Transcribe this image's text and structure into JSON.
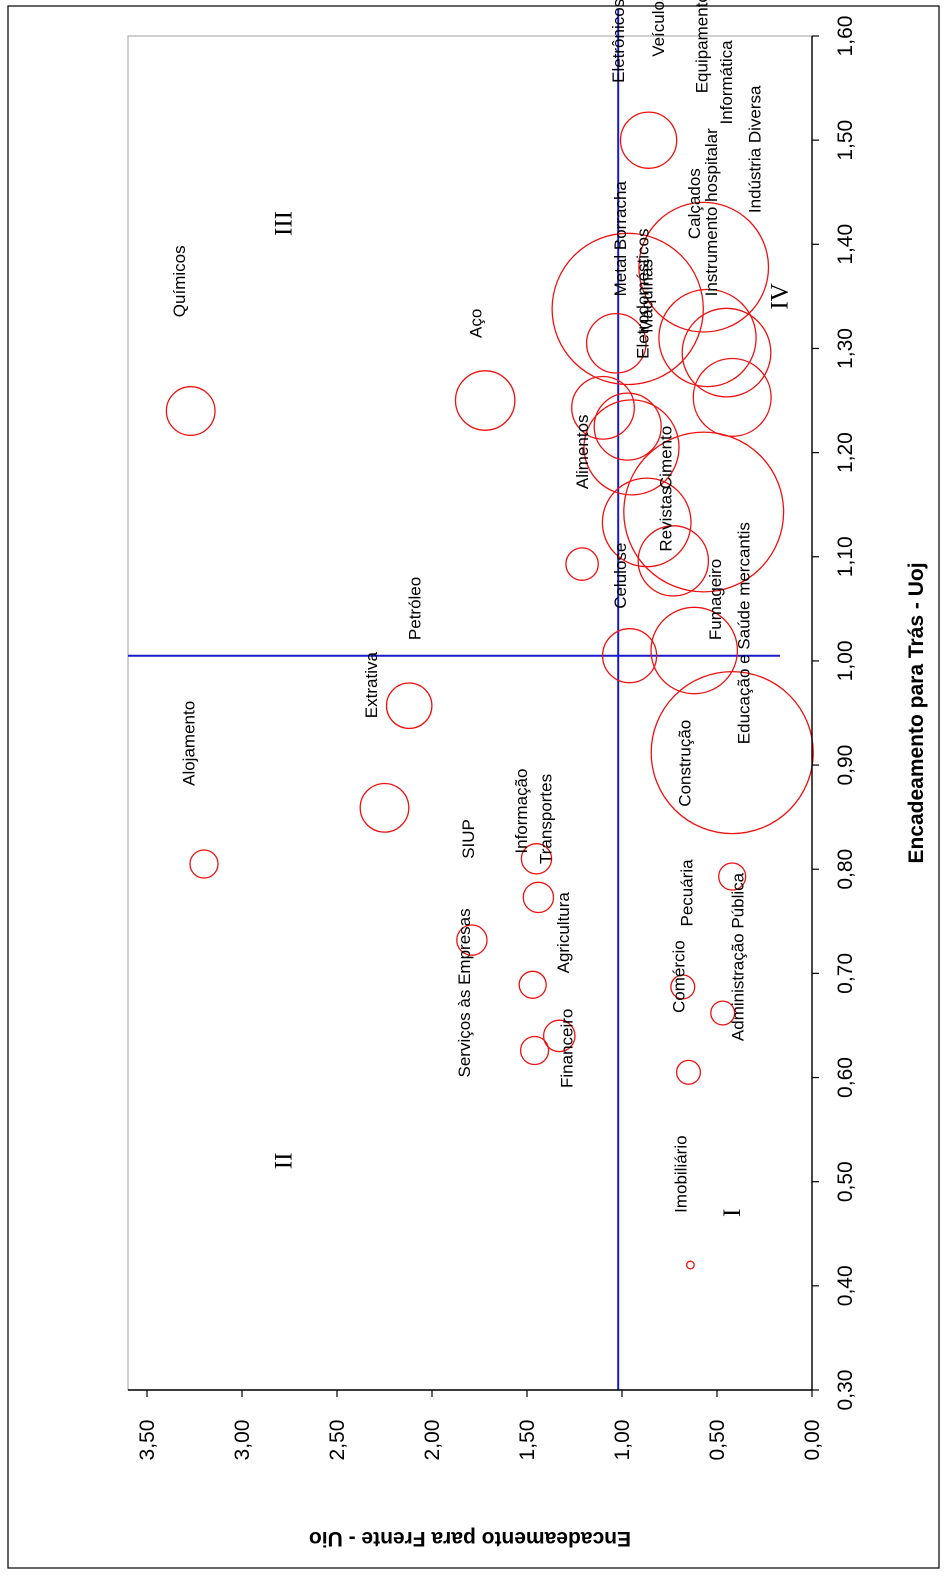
{
  "chart_data": {
    "type": "scatter",
    "variant": "bubble",
    "rotated": "90deg clockwise (x axis along the right side, y axis along the bottom)",
    "title": "",
    "xlabel": "Encadeamento para Trás - Uoj",
    "ylabel": "Encadeamento para Frente - Uio",
    "xlim": [
      0.3,
      1.6
    ],
    "ylim": [
      0.0,
      3.6
    ],
    "x_ticks": [
      "0,30",
      "0,40",
      "0,50",
      "0,60",
      "0,70",
      "0,80",
      "0,90",
      "1,00",
      "1,10",
      "1,20",
      "1,30",
      "1,40",
      "1,50",
      "1,60"
    ],
    "y_ticks": [
      "0,00",
      "0,50",
      "1,00",
      "1,50",
      "2,00",
      "2,50",
      "3,00",
      "3,50"
    ],
    "grid": false,
    "reference_lines": {
      "x": 1.005,
      "y": 1.02
    },
    "colors": {
      "bubbles": "#ee1111",
      "reference_lines": "#1a1acc",
      "frame": "#b0b0b0",
      "text": "#000000"
    },
    "quadrant_labels": [
      {
        "label": "I",
        "x": 0.47,
        "y": 0.38
      },
      {
        "label": "II",
        "x": 0.52,
        "y": 2.74
      },
      {
        "label": "III",
        "x": 1.42,
        "y": 2.74
      },
      {
        "label": "IV",
        "x": 1.35,
        "y": 0.13
      }
    ],
    "points": [
      {
        "name": "Imobiliário",
        "x": 0.42,
        "y": 0.64,
        "r": 0.07
      },
      {
        "name": "Financeiro",
        "x": 0.626,
        "y": 1.46,
        "r": 0.26
      },
      {
        "name": "Serviços às Empresas",
        "x": 0.732,
        "y": 1.79,
        "r": 0.28
      },
      {
        "name": "Agricultura",
        "x": 0.64,
        "y": 1.33,
        "r": 0.29
      },
      {
        "name": "Comércio",
        "x": 0.605,
        "y": 0.65,
        "r": 0.22
      },
      {
        "name": "Administração Pública",
        "x": 0.662,
        "y": 0.47,
        "r": 0.22
      },
      {
        "name": "Pecuária",
        "x": 0.687,
        "y": 0.68,
        "r": 0.22
      },
      {
        "name": "SIUP",
        "x": 0.689,
        "y": 1.47,
        "r": 0.25
      },
      {
        "name": "Informação",
        "x": 0.773,
        "y": 1.44,
        "r": 0.28
      },
      {
        "name": "Transportes",
        "x": 0.81,
        "y": 1.45,
        "r": 0.28
      },
      {
        "name": "Alojamento",
        "x": 0.805,
        "y": 3.2,
        "r": 0.26
      },
      {
        "name": "Extrativa",
        "x": 0.859,
        "y": 2.25,
        "r": 0.45
      },
      {
        "name": "Petróleo",
        "x": 0.957,
        "y": 2.12,
        "r": 0.42
      },
      {
        "name": "Construção",
        "x": 0.793,
        "y": 0.42,
        "r": 0.25
      },
      {
        "name": "Educação e Saúde mercantis",
        "x": 0.912,
        "y": 0.42,
        "r": 1.5
      },
      {
        "name": "Fumageiro",
        "x": 1.01,
        "y": 0.62,
        "r": 0.8
      },
      {
        "name": "Celulose",
        "x": 1.005,
        "y": 0.96,
        "r": 0.5
      },
      {
        "name": "Revistas",
        "x": 1.096,
        "y": 0.73,
        "r": 0.65
      },
      {
        "name": "Alimentos",
        "x": 1.093,
        "y": 1.21,
        "r": 0.3
      },
      {
        "name": "Cimento",
        "x": 1.133,
        "y": 0.87,
        "r": 0.82
      },
      {
        "name": "Eletrodomésticos",
        "x": 1.143,
        "y": 0.57,
        "r": 1.48
      },
      {
        "name": "Máquinas",
        "x": 1.225,
        "y": 0.97,
        "r": 0.62
      },
      {
        "name": "Metal Borracha",
        "x": 1.205,
        "y": 0.95,
        "r": 0.88
      },
      {
        "name": "Aço",
        "x": 1.25,
        "y": 1.72,
        "r": 0.55
      },
      {
        "name": "Químicos",
        "x": 1.24,
        "y": 3.27,
        "r": 0.45
      },
      {
        "name": "Metal Borracha",
        "x": 1.243,
        "y": 1.1,
        "r": 0.58
      },
      {
        "name": "Instrumento hospitalar",
        "x": 1.253,
        "y": 0.42,
        "r": 0.72
      },
      {
        "name": "Indústria Diversa",
        "x": 1.296,
        "y": 0.45,
        "r": 0.82
      },
      {
        "name": "Calçados",
        "x": 1.31,
        "y": 0.55,
        "r": 0.9
      },
      {
        "name": "Eletrônicos",
        "x": 1.338,
        "y": 0.97,
        "r": 1.4
      },
      {
        "name": "Metal Borracha",
        "x": 1.305,
        "y": 1.03,
        "r": 0.55
      },
      {
        "name": "Equipamento de Transporte",
        "x": 1.378,
        "y": 0.57,
        "r": 1.2
      },
      {
        "name": "Veículos",
        "x": 1.5,
        "y": 0.86,
        "r": 0.52
      }
    ],
    "labels": [
      {
        "text": "Imobiliário",
        "x": 0.47,
        "y": 0.66
      },
      {
        "text": "Financeiro",
        "x": 0.59,
        "y": 1.26
      },
      {
        "text": "Serviços às Empresas",
        "x": 0.6,
        "y": 1.8
      },
      {
        "text": "Agricultura",
        "x": 0.7,
        "y": 1.28
      },
      {
        "text": "Comércio",
        "x": 0.662,
        "y": 0.67
      },
      {
        "text": "Administração Pública",
        "x": 0.635,
        "y": 0.36
      },
      {
        "text": "Pecuária",
        "x": 0.745,
        "y": 0.63
      },
      {
        "text": "SIUP",
        "x": 0.81,
        "y": 1.78
      },
      {
        "text": "Informação",
        "x": 0.815,
        "y": 1.5
      },
      {
        "text": "Transportes",
        "x": 0.805,
        "y": 1.37
      },
      {
        "text": "Alojamento",
        "x": 0.88,
        "y": 3.25
      },
      {
        "text": "Extrativa",
        "x": 0.945,
        "y": 2.29
      },
      {
        "text": "Petróleo",
        "x": 1.02,
        "y": 2.06
      },
      {
        "text": "Construção",
        "x": 0.86,
        "y": 0.64
      },
      {
        "text": "Educação e Saúde mercantis",
        "x": 0.92,
        "y": 0.33
      },
      {
        "text": "Fumageiro",
        "x": 1.02,
        "y": 0.48
      },
      {
        "text": "Celulose",
        "x": 1.05,
        "y": 0.98
      },
      {
        "text": "Revistas",
        "x": 1.105,
        "y": 0.74
      },
      {
        "text": "Alimentos",
        "x": 1.165,
        "y": 1.18
      },
      {
        "text": "Cimento",
        "x": 1.165,
        "y": 0.74
      },
      {
        "text": "Eletrodomésticos",
        "x": 1.29,
        "y": 0.86
      },
      {
        "text": "Máquinas",
        "x": 1.315,
        "y": 0.84
      },
      {
        "text": "Metal Borracha",
        "x": 1.35,
        "y": 0.98
      },
      {
        "text": "Aço",
        "x": 1.31,
        "y": 1.74
      },
      {
        "text": "Químicos",
        "x": 1.33,
        "y": 3.3
      },
      {
        "text": "Instrumento hospitalar",
        "x": 1.35,
        "y": 0.5
      },
      {
        "text": "Indústria Diversa",
        "x": 1.43,
        "y": 0.27
      },
      {
        "text": "Calçados",
        "x": 1.405,
        "y": 0.59
      },
      {
        "text": "Informática",
        "x": 1.515,
        "y": 0.42
      },
      {
        "text": "Eletrônicos",
        "x": 1.555,
        "y": 0.99
      },
      {
        "text": "Equipamento de Transporte",
        "x": 1.545,
        "y": 0.55
      },
      {
        "text": "Veículos",
        "x": 1.58,
        "y": 0.78
      }
    ]
  }
}
